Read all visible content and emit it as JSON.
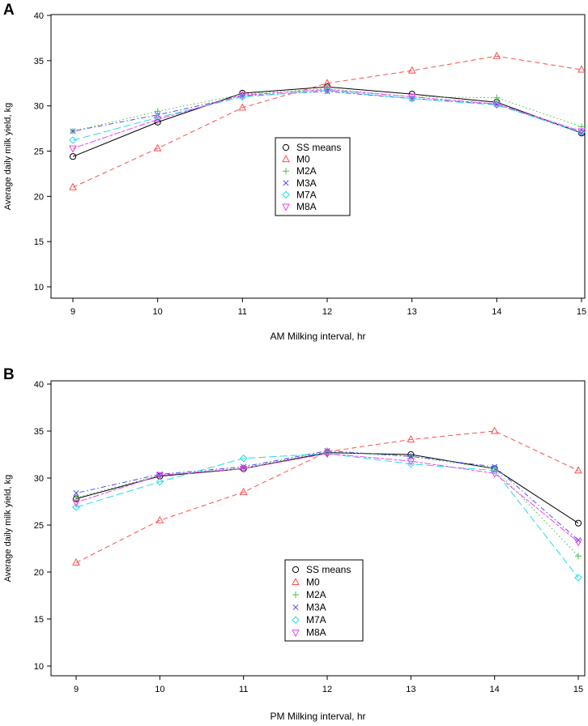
{
  "chart_data": [
    {
      "panel": "A",
      "type": "line",
      "title": "",
      "xlabel": "AM Milking interval, hr",
      "ylabel": "Average daily milk yield, kg",
      "x": [
        9,
        10,
        11,
        12,
        13,
        14,
        15
      ],
      "ylim": [
        10,
        40
      ],
      "yticks": [
        10,
        15,
        20,
        25,
        30,
        35,
        40
      ],
      "legend_position": "center",
      "series": [
        {
          "name": "SS means",
          "values": [
            24.4,
            28.2,
            31.4,
            32.1,
            31.3,
            30.4,
            27.0
          ],
          "color": "#000000",
          "marker": "circle",
          "dash": "solid"
        },
        {
          "name": "M0",
          "values": [
            21.0,
            25.3,
            29.8,
            32.5,
            33.9,
            35.5,
            34.0
          ],
          "color": "#ff4d4d",
          "marker": "triangle-up",
          "dash": "dashed"
        },
        {
          "name": "M2A",
          "values": [
            27.2,
            29.4,
            31.3,
            31.9,
            31.0,
            30.9,
            27.7
          ],
          "color": "#44c444",
          "marker": "plus",
          "dash": "dotted"
        },
        {
          "name": "M3A",
          "values": [
            27.2,
            29.0,
            31.1,
            31.6,
            30.8,
            30.2,
            27.0
          ],
          "color": "#4d4dff",
          "marker": "cross",
          "dash": "dotdash"
        },
        {
          "name": "M7A",
          "values": [
            26.2,
            28.7,
            31.0,
            31.7,
            30.8,
            30.1,
            27.1
          ],
          "color": "#22dddd",
          "marker": "diamond",
          "dash": "longdash"
        },
        {
          "name": "M8A",
          "values": [
            25.3,
            28.5,
            31.2,
            31.8,
            31.0,
            30.2,
            27.2
          ],
          "color": "#ee44ee",
          "marker": "triangle-down",
          "dash": "twodash"
        }
      ]
    },
    {
      "panel": "B",
      "type": "line",
      "title": "",
      "xlabel": "PM Milking interval, hr",
      "ylabel": "Average daily milk yield, kg",
      "x": [
        9,
        10,
        11,
        12,
        13,
        14,
        15
      ],
      "ylim": [
        10,
        40
      ],
      "yticks": [
        10,
        15,
        20,
        25,
        30,
        35,
        40
      ],
      "legend_position": "center-bottom",
      "series": [
        {
          "name": "SS means",
          "values": [
            27.8,
            30.2,
            31.0,
            32.7,
            32.5,
            31.0,
            25.2
          ],
          "color": "#000000",
          "marker": "circle",
          "dash": "solid"
        },
        {
          "name": "M0",
          "values": [
            21.0,
            25.5,
            28.5,
            32.8,
            34.1,
            35.0,
            30.8
          ],
          "color": "#ff4d4d",
          "marker": "triangle-up",
          "dash": "dashed"
        },
        {
          "name": "M2A",
          "values": [
            27.9,
            30.3,
            31.1,
            32.8,
            32.3,
            31.0,
            21.7
          ],
          "color": "#44c444",
          "marker": "plus",
          "dash": "dotted"
        },
        {
          "name": "M3A",
          "values": [
            28.4,
            30.4,
            31.2,
            32.9,
            32.3,
            31.2,
            23.4
          ],
          "color": "#4d4dff",
          "marker": "cross",
          "dash": "dotdash"
        },
        {
          "name": "M7A",
          "values": [
            26.9,
            29.6,
            32.1,
            32.6,
            31.5,
            30.8,
            19.4
          ],
          "color": "#22dddd",
          "marker": "diamond",
          "dash": "longdash"
        },
        {
          "name": "M8A",
          "values": [
            27.4,
            30.3,
            31.0,
            32.6,
            31.8,
            30.5,
            23.2
          ],
          "color": "#ee44ee",
          "marker": "triangle-down",
          "dash": "twodash"
        }
      ]
    }
  ]
}
